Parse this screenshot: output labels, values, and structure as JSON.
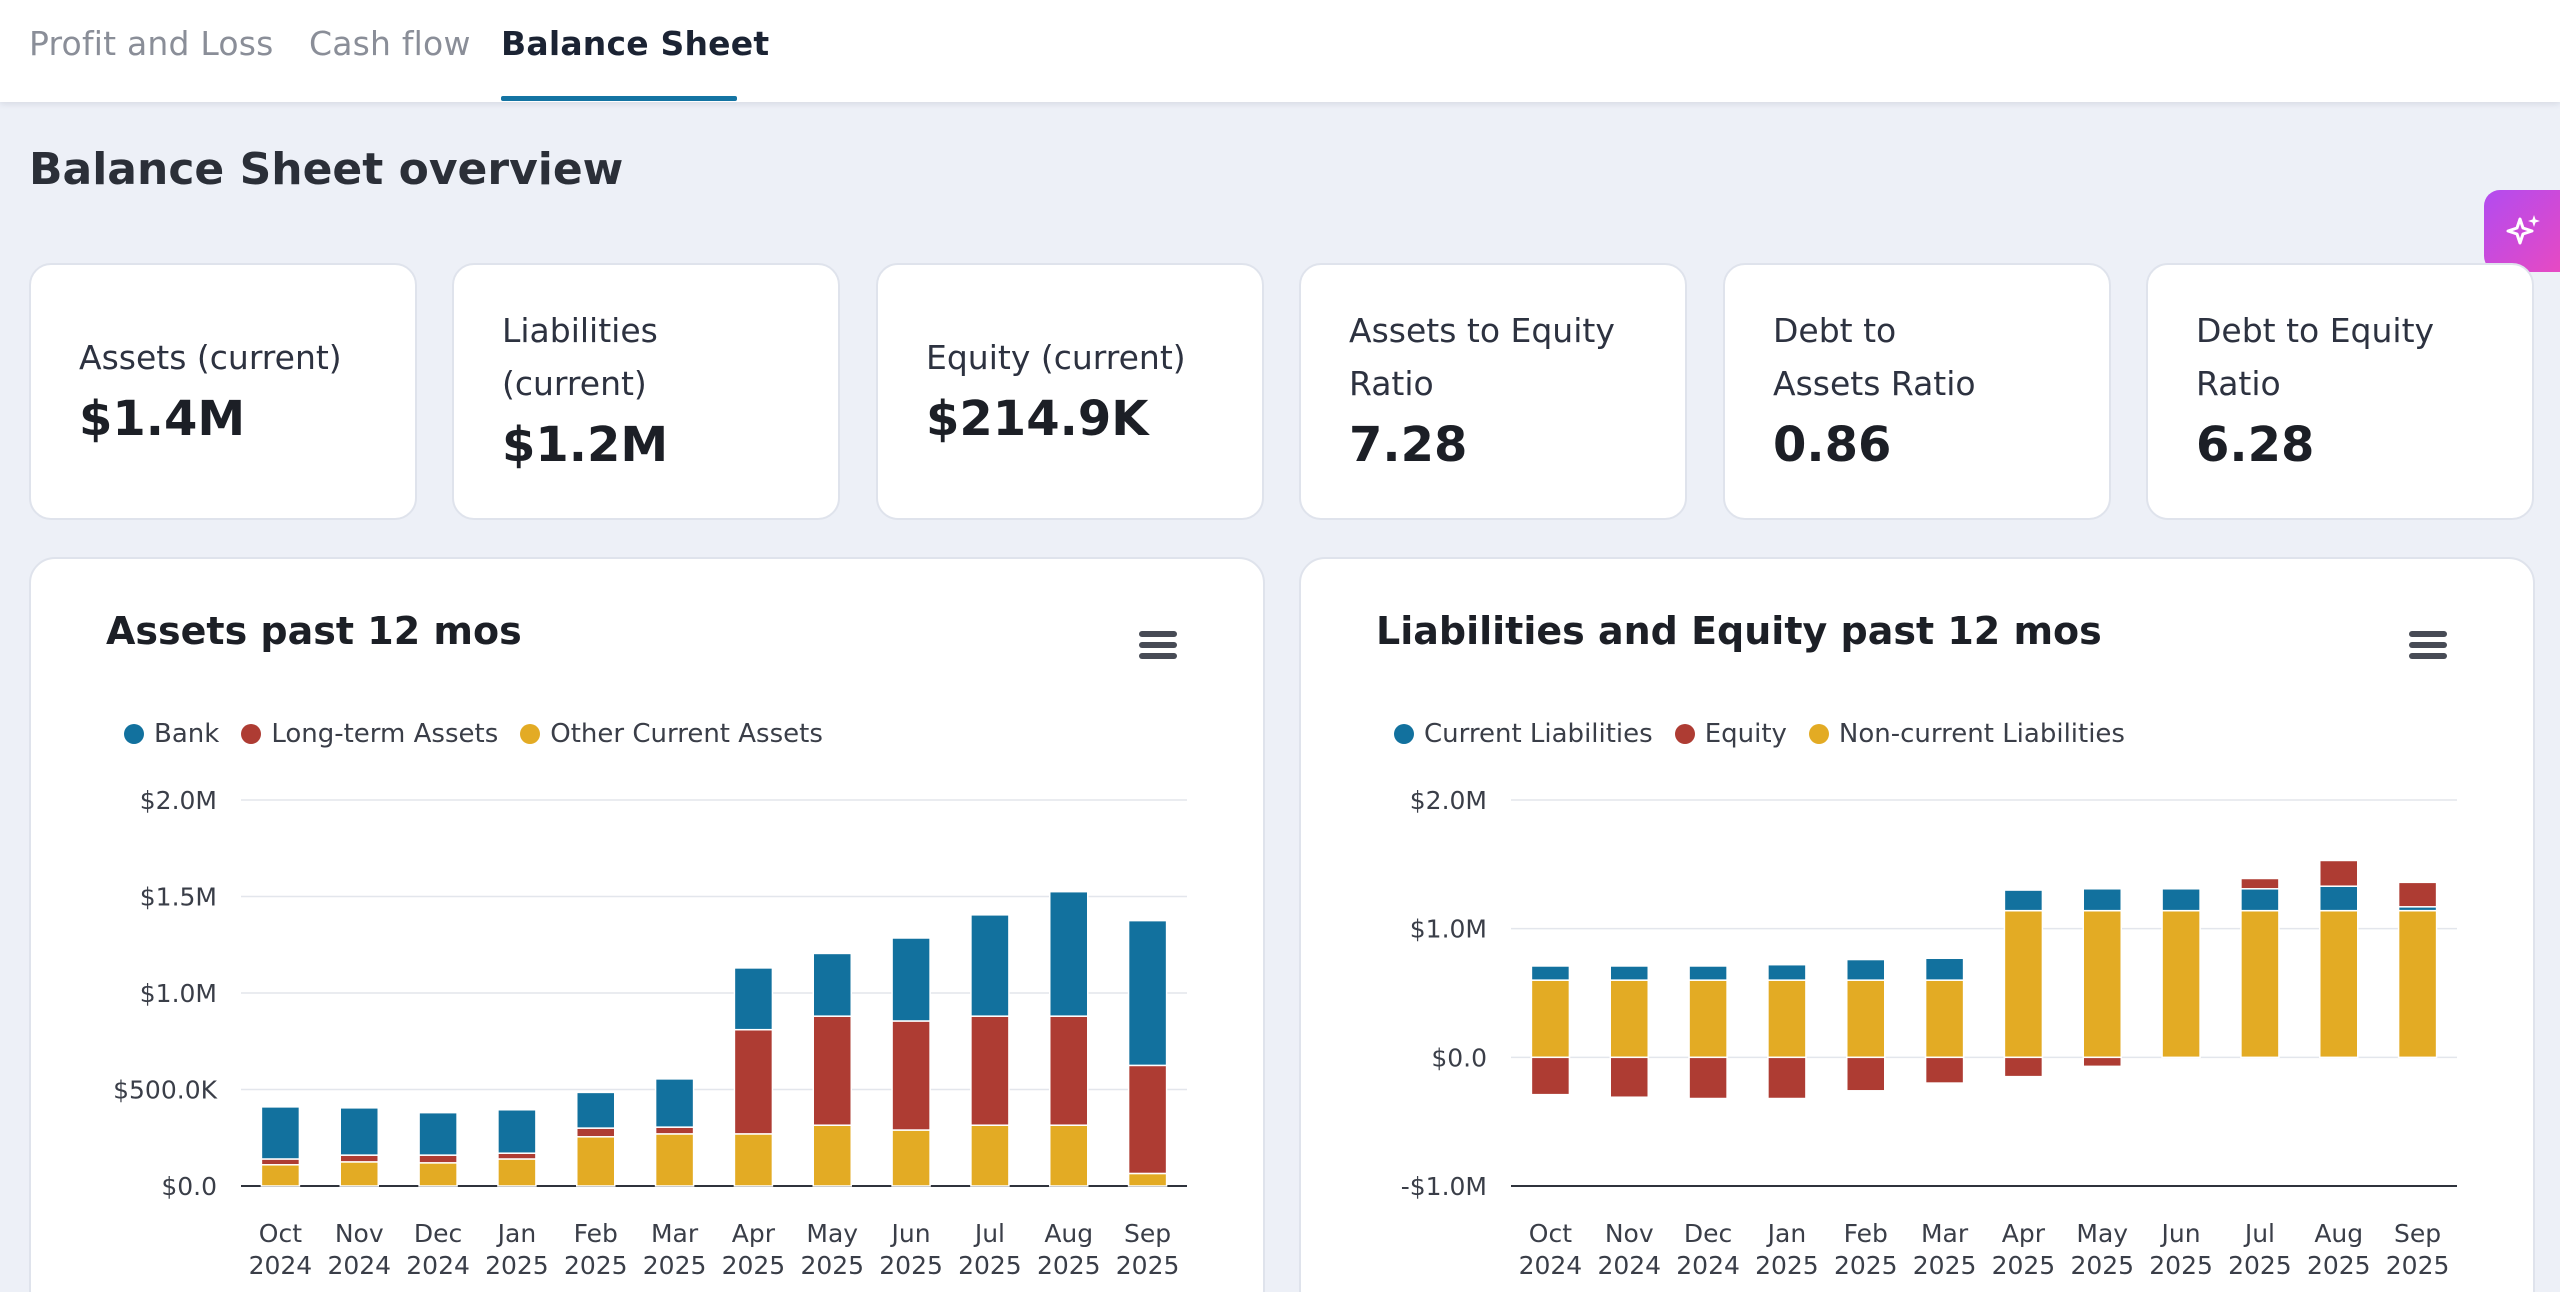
{
  "tabs": [
    {
      "label": "Profit and Loss",
      "active": false
    },
    {
      "label": "Cash flow",
      "active": false
    },
    {
      "label": "Balance Sheet",
      "active": true
    }
  ],
  "page_title": "Balance Sheet overview",
  "ai_button_icon": "sparkle-icon",
  "kpis": [
    {
      "label": "Assets (current)",
      "value": "$1.4M"
    },
    {
      "label": "Liabilities (current)",
      "value": "$1.2M"
    },
    {
      "label": "Equity (current)",
      "value": "$214.9K"
    },
    {
      "label": "Assets to Equity Ratio",
      "value": "7.28"
    },
    {
      "label": "Debt to Assets Ratio",
      "value": "0.86"
    },
    {
      "label": "Debt to Equity Ratio",
      "value": "6.28"
    }
  ],
  "colors": {
    "blue": "#12719e",
    "red": "#ae3c33",
    "yellow": "#e3ab24",
    "accent": "#1474a3"
  },
  "chart_data": [
    {
      "type": "bar",
      "stacked": true,
      "title": "Assets past 12 mos",
      "categories": [
        [
          "Oct",
          "2024"
        ],
        [
          "Nov",
          "2024"
        ],
        [
          "Dec",
          "2024"
        ],
        [
          "Jan",
          "2025"
        ],
        [
          "Feb",
          "2025"
        ],
        [
          "Mar",
          "2025"
        ],
        [
          "Apr",
          "2025"
        ],
        [
          "May",
          "2025"
        ],
        [
          "Jun",
          "2025"
        ],
        [
          "Jul",
          "2025"
        ],
        [
          "Aug",
          "2025"
        ],
        [
          "Sep",
          "2025"
        ]
      ],
      "ylim": [
        0,
        2000000
      ],
      "yticks": [
        {
          "v": 0,
          "label": "$0.0"
        },
        {
          "v": 500000,
          "label": "$500.0K"
        },
        {
          "v": 1000000,
          "label": "$1.0M"
        },
        {
          "v": 1500000,
          "label": "$1.5M"
        },
        {
          "v": 2000000,
          "label": "$2.0M"
        }
      ],
      "legend_position": "top-left",
      "series": [
        {
          "name": "Other Current Assets",
          "color": "#e3ab24",
          "values": [
            110000,
            125000,
            120000,
            140000,
            255000,
            270000,
            270000,
            315000,
            290000,
            315000,
            315000,
            65000
          ]
        },
        {
          "name": "Long-term Assets",
          "color": "#ae3c33",
          "values": [
            30000,
            35000,
            40000,
            30000,
            45000,
            35000,
            540000,
            565000,
            565000,
            565000,
            565000,
            560000
          ]
        },
        {
          "name": "Bank",
          "color": "#12719e",
          "values": [
            270000,
            245000,
            220000,
            225000,
            185000,
            250000,
            320000,
            325000,
            430000,
            525000,
            645000,
            750000
          ]
        }
      ],
      "legend_order": [
        "Bank",
        "Long-term Assets",
        "Other Current Assets"
      ]
    },
    {
      "type": "bar",
      "stacked": true,
      "title": "Liabilities and Equity past 12 mos",
      "categories": [
        [
          "Oct",
          "2024"
        ],
        [
          "Nov",
          "2024"
        ],
        [
          "Dec",
          "2024"
        ],
        [
          "Jan",
          "2025"
        ],
        [
          "Feb",
          "2025"
        ],
        [
          "Mar",
          "2025"
        ],
        [
          "Apr",
          "2025"
        ],
        [
          "May",
          "2025"
        ],
        [
          "Jun",
          "2025"
        ],
        [
          "Jul",
          "2025"
        ],
        [
          "Aug",
          "2025"
        ],
        [
          "Sep",
          "2025"
        ]
      ],
      "ylim": [
        -1000000,
        2000000
      ],
      "yticks": [
        {
          "v": -1000000,
          "label": "-$1.0M"
        },
        {
          "v": 0,
          "label": "$0.0"
        },
        {
          "v": 1000000,
          "label": "$1.0M"
        },
        {
          "v": 2000000,
          "label": "$2.0M"
        }
      ],
      "legend_position": "top-left",
      "series": [
        {
          "name": "Non-current Liabilities",
          "color": "#e3ab24",
          "values": [
            600000,
            600000,
            600000,
            600000,
            600000,
            600000,
            1140000,
            1140000,
            1140000,
            1140000,
            1140000,
            1140000
          ]
        },
        {
          "name": "Current Liabilities",
          "color": "#12719e",
          "values": [
            110000,
            110000,
            110000,
            120000,
            160000,
            170000,
            160000,
            170000,
            170000,
            170000,
            190000,
            30000
          ]
        },
        {
          "name": "Equity",
          "color": "#ae3c33",
          "values": [
            -290000,
            -310000,
            -320000,
            -320000,
            -260000,
            -200000,
            -150000,
            -70000,
            0,
            80000,
            200000,
            190000
          ]
        }
      ],
      "legend_order": [
        "Current Liabilities",
        "Equity",
        "Non-current Liabilities"
      ]
    }
  ]
}
